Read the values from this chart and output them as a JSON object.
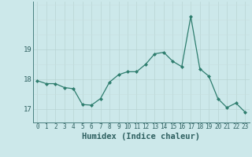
{
  "xlabel": "Humidex (Indice chaleur)",
  "x": [
    0,
    1,
    2,
    3,
    4,
    5,
    6,
    7,
    8,
    9,
    10,
    11,
    12,
    13,
    14,
    15,
    16,
    17,
    18,
    19,
    20,
    21,
    22,
    23
  ],
  "y": [
    17.95,
    17.85,
    17.85,
    17.72,
    17.68,
    17.15,
    17.13,
    17.35,
    17.9,
    18.15,
    18.25,
    18.25,
    18.5,
    18.85,
    18.9,
    18.6,
    18.42,
    20.1,
    18.35,
    18.1,
    17.35,
    17.05,
    17.2,
    16.9
  ],
  "line_color": "#2e7d6e",
  "marker": "D",
  "marker_size": 2.0,
  "bg_color": "#cce8ea",
  "grid_color_major": "#b8d4d4",
  "grid_color_minor": "#c8dede",
  "yticks": [
    17,
    18,
    19
  ],
  "ylim": [
    16.55,
    20.6
  ],
  "xlim": [
    -0.5,
    23.5
  ],
  "tick_label_color": "#2e6060",
  "xlabel_color": "#2e6060",
  "axis_color": "#4a8080",
  "label_fontsize": 7.5
}
